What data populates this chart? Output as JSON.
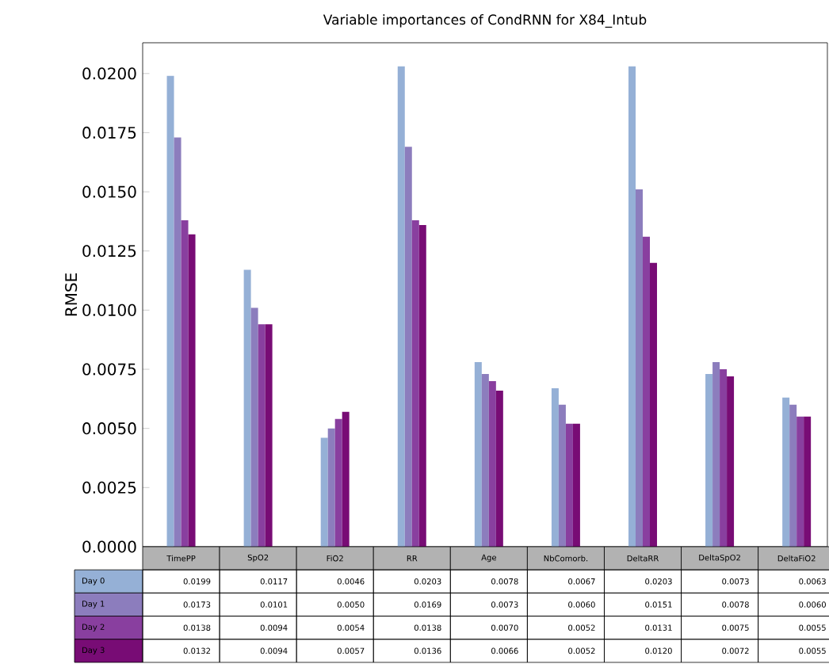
{
  "chart_data": {
    "type": "bar",
    "title": "Variable importances of CondRNN for X84_Intub",
    "ylabel": "RMSE",
    "categories": [
      "TimePP",
      "SpO2",
      "FiO2",
      "RR",
      "Age",
      "NbComorb.",
      "DeltaRR",
      "DeltaSpO2",
      "DeltaFiO2"
    ],
    "series": [
      {
        "name": "Day 0",
        "color": "#95b0d6",
        "values": [
          0.0199,
          0.0117,
          0.0046,
          0.0203,
          0.0078,
          0.0067,
          0.0203,
          0.0073,
          0.0063
        ],
        "value_labels": [
          "0.0199",
          "0.0117",
          "0.0046",
          "0.0203",
          "0.0078",
          "0.0067",
          "0.0203",
          "0.0073",
          "0.0063"
        ]
      },
      {
        "name": "Day 1",
        "color": "#8c7dbd",
        "values": [
          0.0173,
          0.0101,
          0.005,
          0.0169,
          0.0073,
          0.006,
          0.0151,
          0.0078,
          0.006
        ],
        "value_labels": [
          "0.0173",
          "0.0101",
          "0.0050",
          "0.0169",
          "0.0073",
          "0.0060",
          "0.0151",
          "0.0078",
          "0.0060"
        ]
      },
      {
        "name": "Day 2",
        "color": "#893f9f",
        "values": [
          0.0138,
          0.0094,
          0.0054,
          0.0138,
          0.007,
          0.0052,
          0.0131,
          0.0075,
          0.0055
        ],
        "value_labels": [
          "0.0138",
          "0.0094",
          "0.0054",
          "0.0138",
          "0.0070",
          "0.0052",
          "0.0131",
          "0.0075",
          "0.0055"
        ]
      },
      {
        "name": "Day 3",
        "color": "#780c75",
        "values": [
          0.0132,
          0.0094,
          0.0057,
          0.0136,
          0.0066,
          0.0052,
          0.012,
          0.0072,
          0.0055
        ],
        "value_labels": [
          "0.0132",
          "0.0094",
          "0.0057",
          "0.0136",
          "0.0066",
          "0.0052",
          "0.0120",
          "0.0072",
          "0.0055"
        ]
      }
    ],
    "ylim": [
      0,
      0.0213
    ],
    "yticks": [
      {
        "value": 0,
        "label": "0.0000"
      },
      {
        "value": 0.0025,
        "label": "0.0025"
      },
      {
        "value": 0.005,
        "label": "0.0050"
      },
      {
        "value": 0.0075,
        "label": "0.0075"
      },
      {
        "value": 0.01,
        "label": "0.0100"
      },
      {
        "value": 0.0125,
        "label": "0.0125"
      },
      {
        "value": 0.015,
        "label": "0.0150"
      },
      {
        "value": 0.0175,
        "label": "0.0175"
      },
      {
        "value": 0.02,
        "label": "0.0200"
      }
    ],
    "legend": "bottom left",
    "grid": false
  }
}
